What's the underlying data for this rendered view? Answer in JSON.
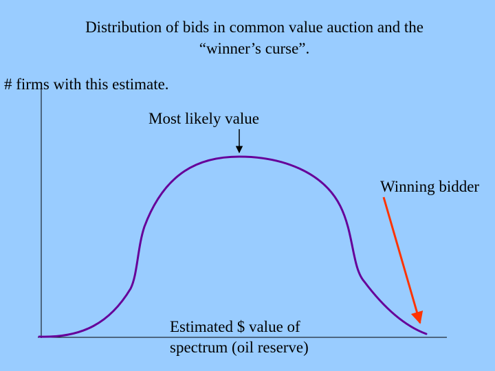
{
  "title": {
    "line1": "Distribution of bids in common value auction and the",
    "line2": "“winner’s curse”."
  },
  "y_axis_label": "# firms with this estimate.",
  "annotations": {
    "most_likely": "Most likely value",
    "winning_bidder": "Winning bidder"
  },
  "x_axis_label": {
    "line1": "Estimated $ value of",
    "line2": "spectrum (oil reserve)"
  },
  "colors": {
    "background": "#99ccff",
    "curve": "#660099",
    "winner_arrow": "#ff3300",
    "axis": "#000000"
  }
}
